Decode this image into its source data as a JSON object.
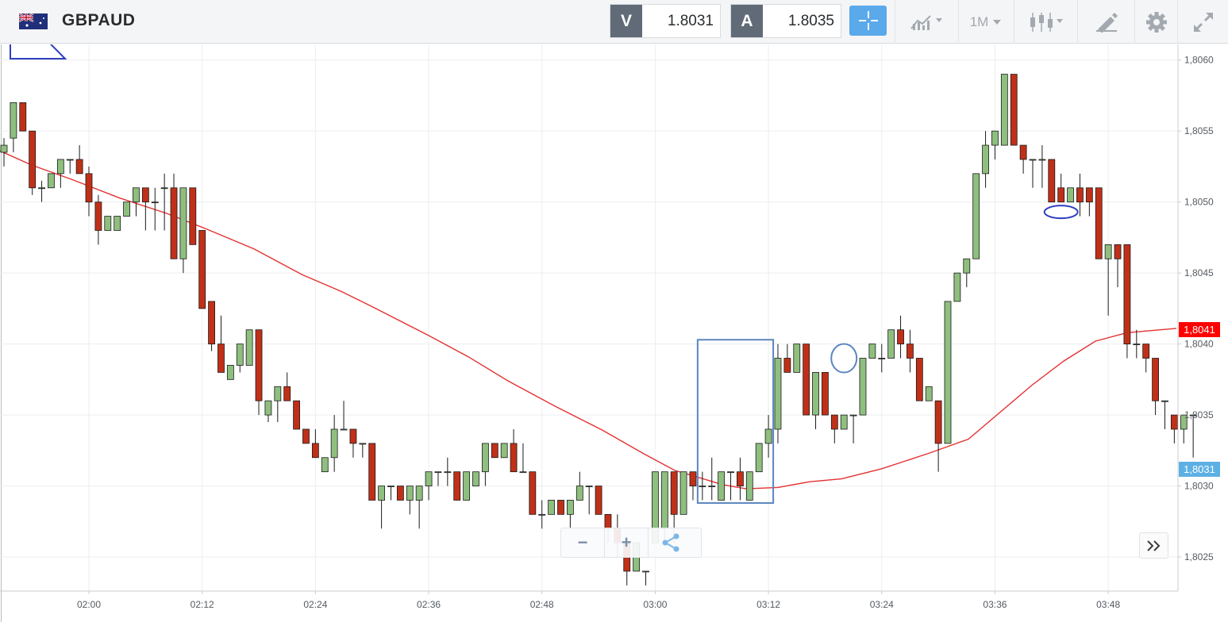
{
  "header": {
    "symbol": "GBPAUD",
    "flag_icon": "gb-au-flag-icon",
    "sell": {
      "tag": "V",
      "value": "1.8031"
    },
    "buy": {
      "tag": "A",
      "value": "1.8035"
    },
    "timeframe": "1M",
    "tools": [
      "crosshair-icon",
      "chart-type-icon",
      "timeframe-select",
      "candles-icon",
      "draw-icon",
      "gear-icon",
      "fullscreen-icon"
    ]
  },
  "zoom": {
    "minus": "−",
    "plus": "+",
    "share_icon": "share-icon"
  },
  "colors": {
    "up": "#8fbf7f",
    "down": "#c03018",
    "ma": "#e53030",
    "bid_tag": "#ff0000",
    "ask_tag": "#5cb0e4",
    "annotation": "#5b86c0"
  },
  "chart_data": {
    "type": "candlestick",
    "symbol": "GBPAUD",
    "y_range": [
      1.80226,
      1.80611
    ],
    "y_ticks": [
      "1,8025",
      "1,8030",
      "1,8035",
      "1,8040",
      "1,8045",
      "1,8050",
      "1,8055",
      "1,8060"
    ],
    "x_ticks": [
      "02:00",
      "02:12",
      "02:24",
      "02:36",
      "02:48",
      "03:00",
      "03:12",
      "03:24",
      "03:36",
      "03:48"
    ],
    "last_tags": [
      {
        "label": "1,8041",
        "value": 1.8041,
        "color": "#ff0000"
      },
      {
        "label": "1,8031",
        "value": 1.80312,
        "color": "#5cb0e4"
      }
    ],
    "candles": [
      [
        1.80535,
        1.80545,
        1.80525,
        1.8054
      ],
      [
        1.80545,
        1.8057,
        1.80535,
        1.8057
      ],
      [
        1.8057,
        1.8057,
        1.8055,
        1.8055
      ],
      [
        1.8055,
        1.8055,
        1.80505,
        1.8051
      ],
      [
        1.8051,
        1.80515,
        1.805,
        1.8051
      ],
      [
        1.8051,
        1.8052,
        1.8051,
        1.8052
      ],
      [
        1.8052,
        1.8053,
        1.8051,
        1.8053
      ],
      [
        1.8053,
        1.8053,
        1.8052,
        1.8053
      ],
      [
        1.8053,
        1.8054,
        1.8052,
        1.8052
      ],
      [
        1.8052,
        1.80525,
        1.8049,
        1.805
      ],
      [
        1.805,
        1.80505,
        1.8047,
        1.8048
      ],
      [
        1.8048,
        1.8049,
        1.8048,
        1.8049
      ],
      [
        1.8048,
        1.8049,
        1.8048,
        1.8049
      ],
      [
        1.8049,
        1.805,
        1.8049,
        1.805
      ],
      [
        1.805,
        1.8051,
        1.8049,
        1.8051
      ],
      [
        1.8051,
        1.8051,
        1.8048,
        1.805
      ],
      [
        1.805,
        1.8051,
        1.8048,
        1.805
      ],
      [
        1.8051,
        1.8052,
        1.8048,
        1.8051
      ],
      [
        1.8051,
        1.8052,
        1.8046,
        1.8046
      ],
      [
        1.8046,
        1.8051,
        1.8045,
        1.8051
      ],
      [
        1.8051,
        1.8051,
        1.8047,
        1.8047
      ],
      [
        1.8048,
        1.8048,
        1.80425,
        1.80425
      ],
      [
        1.8043,
        1.8043,
        1.80395,
        1.804
      ],
      [
        1.804,
        1.8042,
        1.8038,
        1.8038
      ],
      [
        1.80375,
        1.80385,
        1.80375,
        1.80385
      ],
      [
        1.80385,
        1.804,
        1.8038,
        1.804
      ],
      [
        1.80385,
        1.8041,
        1.80385,
        1.8041
      ],
      [
        1.8041,
        1.8041,
        1.8035,
        1.8036
      ],
      [
        1.8035,
        1.8036,
        1.80345,
        1.8036
      ],
      [
        1.8036,
        1.8037,
        1.80345,
        1.8037
      ],
      [
        1.8037,
        1.8038,
        1.8036,
        1.8036
      ],
      [
        1.8036,
        1.8036,
        1.8034,
        1.8034
      ],
      [
        1.8034,
        1.8034,
        1.8033,
        1.8033
      ],
      [
        1.8033,
        1.8034,
        1.8032,
        1.8032
      ],
      [
        1.8031,
        1.8032,
        1.8031,
        1.8032
      ],
      [
        1.8032,
        1.8035,
        1.8031,
        1.8034
      ],
      [
        1.8034,
        1.8036,
        1.8034,
        1.8034
      ],
      [
        1.8034,
        1.8034,
        1.8032,
        1.8033
      ],
      [
        1.8033,
        1.8033,
        1.8032,
        1.8033
      ],
      [
        1.8033,
        1.8033,
        1.8029,
        1.8029
      ],
      [
        1.8029,
        1.803,
        1.8027,
        1.803
      ],
      [
        1.803,
        1.803,
        1.8029,
        1.803
      ],
      [
        1.803,
        1.803,
        1.8029,
        1.8029
      ],
      [
        1.8029,
        1.803,
        1.8028,
        1.803
      ],
      [
        1.8029,
        1.803,
        1.8027,
        1.803
      ],
      [
        1.803,
        1.8031,
        1.8029,
        1.8031
      ],
      [
        1.8031,
        1.8031,
        1.803,
        1.8031
      ],
      [
        1.8031,
        1.8032,
        1.803,
        1.8031
      ],
      [
        1.8031,
        1.8031,
        1.8029,
        1.8029
      ],
      [
        1.8029,
        1.8031,
        1.8029,
        1.8031
      ],
      [
        1.803,
        1.8031,
        1.803,
        1.8031
      ],
      [
        1.8031,
        1.8033,
        1.803,
        1.8033
      ],
      [
        1.8033,
        1.8033,
        1.8032,
        1.8032
      ],
      [
        1.8032,
        1.8033,
        1.8032,
        1.8033
      ],
      [
        1.8033,
        1.8034,
        1.8031,
        1.8031
      ],
      [
        1.8031,
        1.8033,
        1.8031,
        1.8031
      ],
      [
        1.8031,
        1.8031,
        1.8028,
        1.8028
      ],
      [
        1.8028,
        1.8029,
        1.8027,
        1.8028
      ],
      [
        1.8028,
        1.8029,
        1.8028,
        1.8029
      ],
      [
        1.8029,
        1.8029,
        1.8028,
        1.8028
      ],
      [
        1.8028,
        1.8029,
        1.8027,
        1.8029
      ],
      [
        1.8029,
        1.8031,
        1.8029,
        1.803
      ],
      [
        1.803,
        1.803,
        1.8028,
        1.803
      ],
      [
        1.803,
        1.803,
        1.8028,
        1.8028
      ],
      [
        1.8028,
        1.8028,
        1.8026,
        1.8027
      ],
      [
        1.8027,
        1.8028,
        1.8025,
        1.8026
      ],
      [
        1.8026,
        1.8026,
        1.8023,
        1.8024
      ],
      [
        1.8024,
        1.8026,
        1.8024,
        1.8026
      ],
      [
        1.8024,
        1.8024,
        1.8023,
        1.8024
      ],
      [
        1.8026,
        1.8031,
        1.8026,
        1.8031
      ],
      [
        1.8027,
        1.8031,
        1.8026,
        1.8031
      ],
      [
        1.8031,
        1.8031,
        1.8026,
        1.8028
      ],
      [
        1.8028,
        1.8031,
        1.8028,
        1.8031
      ],
      [
        1.8031,
        1.8031,
        1.8029,
        1.803
      ],
      [
        1.803,
        1.8031,
        1.8029,
        1.803
      ],
      [
        1.803,
        1.8032,
        1.8029,
        1.803
      ],
      [
        1.8029,
        1.8031,
        1.8029,
        1.8031
      ],
      [
        1.8031,
        1.8031,
        1.8029,
        1.8031
      ],
      [
        1.8031,
        1.8032,
        1.8029,
        1.803
      ],
      [
        1.8029,
        1.8031,
        1.8029,
        1.8031
      ],
      [
        1.8031,
        1.8033,
        1.8031,
        1.8033
      ],
      [
        1.8033,
        1.8035,
        1.8032,
        1.8034
      ],
      [
        1.8034,
        1.804,
        1.8033,
        1.8039
      ],
      [
        1.8039,
        1.804,
        1.8038,
        1.8038
      ],
      [
        1.8038,
        1.804,
        1.8038,
        1.804
      ],
      [
        1.804,
        1.804,
        1.8035,
        1.8035
      ],
      [
        1.8035,
        1.8038,
        1.8034,
        1.8038
      ],
      [
        1.8038,
        1.8038,
        1.8035,
        1.8035
      ],
      [
        1.8035,
        1.8035,
        1.8033,
        1.8034
      ],
      [
        1.8034,
        1.8035,
        1.8034,
        1.8035
      ],
      [
        1.8035,
        1.8035,
        1.8033,
        1.8035
      ],
      [
        1.8035,
        1.8039,
        1.8035,
        1.8039
      ],
      [
        1.8039,
        1.804,
        1.8039,
        1.804
      ],
      [
        1.8039,
        1.804,
        1.8038,
        1.8039
      ],
      [
        1.8039,
        1.8041,
        1.8039,
        1.8041
      ],
      [
        1.8041,
        1.8042,
        1.8039,
        1.804
      ],
      [
        1.804,
        1.8041,
        1.8038,
        1.8039
      ],
      [
        1.8039,
        1.8039,
        1.8036,
        1.8036
      ],
      [
        1.8036,
        1.8037,
        1.8036,
        1.8037
      ],
      [
        1.8036,
        1.8036,
        1.8031,
        1.8033
      ],
      [
        1.8033,
        1.8043,
        1.8033,
        1.8043
      ],
      [
        1.8043,
        1.8045,
        1.8043,
        1.8045
      ],
      [
        1.8045,
        1.8046,
        1.8044,
        1.8046
      ],
      [
        1.8046,
        1.8052,
        1.8046,
        1.8052
      ],
      [
        1.8052,
        1.8055,
        1.8051,
        1.8054
      ],
      [
        1.8054,
        1.8055,
        1.8053,
        1.8055
      ],
      [
        1.8054,
        1.8059,
        1.8054,
        1.8059
      ],
      [
        1.8059,
        1.8059,
        1.8054,
        1.8054
      ],
      [
        1.8054,
        1.8054,
        1.8052,
        1.8053
      ],
      [
        1.8053,
        1.8053,
        1.8051,
        1.8053
      ],
      [
        1.8053,
        1.8054,
        1.8051,
        1.8053
      ],
      [
        1.8053,
        1.8053,
        1.805,
        1.805
      ],
      [
        1.8051,
        1.8052,
        1.805,
        1.805
      ],
      [
        1.805,
        1.8051,
        1.805,
        1.8051
      ],
      [
        1.8051,
        1.8052,
        1.8049,
        1.805
      ],
      [
        1.8051,
        1.8051,
        1.8049,
        1.805
      ],
      [
        1.8051,
        1.8051,
        1.8046,
        1.8046
      ],
      [
        1.8046,
        1.8047,
        1.8042,
        1.8047
      ],
      [
        1.8047,
        1.8047,
        1.8044,
        1.8046
      ],
      [
        1.8047,
        1.8047,
        1.8039,
        1.804
      ],
      [
        1.804,
        1.8041,
        1.8039,
        1.804
      ],
      [
        1.804,
        1.804,
        1.8038,
        1.8039
      ],
      [
        1.8039,
        1.8039,
        1.8035,
        1.8036
      ],
      [
        1.8036,
        1.8036,
        1.8034,
        1.8036
      ],
      [
        1.8035,
        1.8035,
        1.8033,
        1.8034
      ],
      [
        1.8034,
        1.8035,
        1.8033,
        1.8035
      ],
      [
        1.8035,
        1.8035,
        1.8032,
        1.8035
      ]
    ],
    "moving_average": [
      [
        0,
        1.80536
      ],
      [
        40,
        1.80526
      ],
      [
        90,
        1.80516
      ],
      [
        150,
        1.80503
      ],
      [
        210,
        1.80492
      ],
      [
        260,
        1.80481
      ],
      [
        320,
        1.80467
      ],
      [
        380,
        1.80449
      ],
      [
        430,
        1.80437
      ],
      [
        470,
        1.80426
      ],
      [
        540,
        1.80406
      ],
      [
        590,
        1.80391
      ],
      [
        640,
        1.80374
      ],
      [
        700,
        1.80356
      ],
      [
        760,
        1.80339
      ],
      [
        810,
        1.80323
      ],
      [
        850,
        1.80311
      ],
      [
        880,
        1.80306
      ],
      [
        910,
        1.80301
      ],
      [
        940,
        1.80298
      ],
      [
        980,
        1.80299
      ],
      [
        1020,
        1.80303
      ],
      [
        1060,
        1.80305
      ],
      [
        1110,
        1.80312
      ],
      [
        1170,
        1.80323
      ],
      [
        1220,
        1.80333
      ],
      [
        1260,
        1.80352
      ],
      [
        1300,
        1.80371
      ],
      [
        1340,
        1.80388
      ],
      [
        1380,
        1.80402
      ],
      [
        1420,
        1.80408
      ],
      [
        1482,
        1.80411
      ]
    ],
    "annotations": [
      {
        "type": "rectangle",
        "from_candle": 74,
        "to_candle": 81,
        "y": [
          1.80288,
          1.80403
        ]
      },
      {
        "type": "circle",
        "candle": 89,
        "y": 1.8039
      },
      {
        "type": "ellipse",
        "candle": 112,
        "y": 1.80493
      },
      {
        "type": "triangle",
        "corner": "top-left"
      }
    ]
  }
}
